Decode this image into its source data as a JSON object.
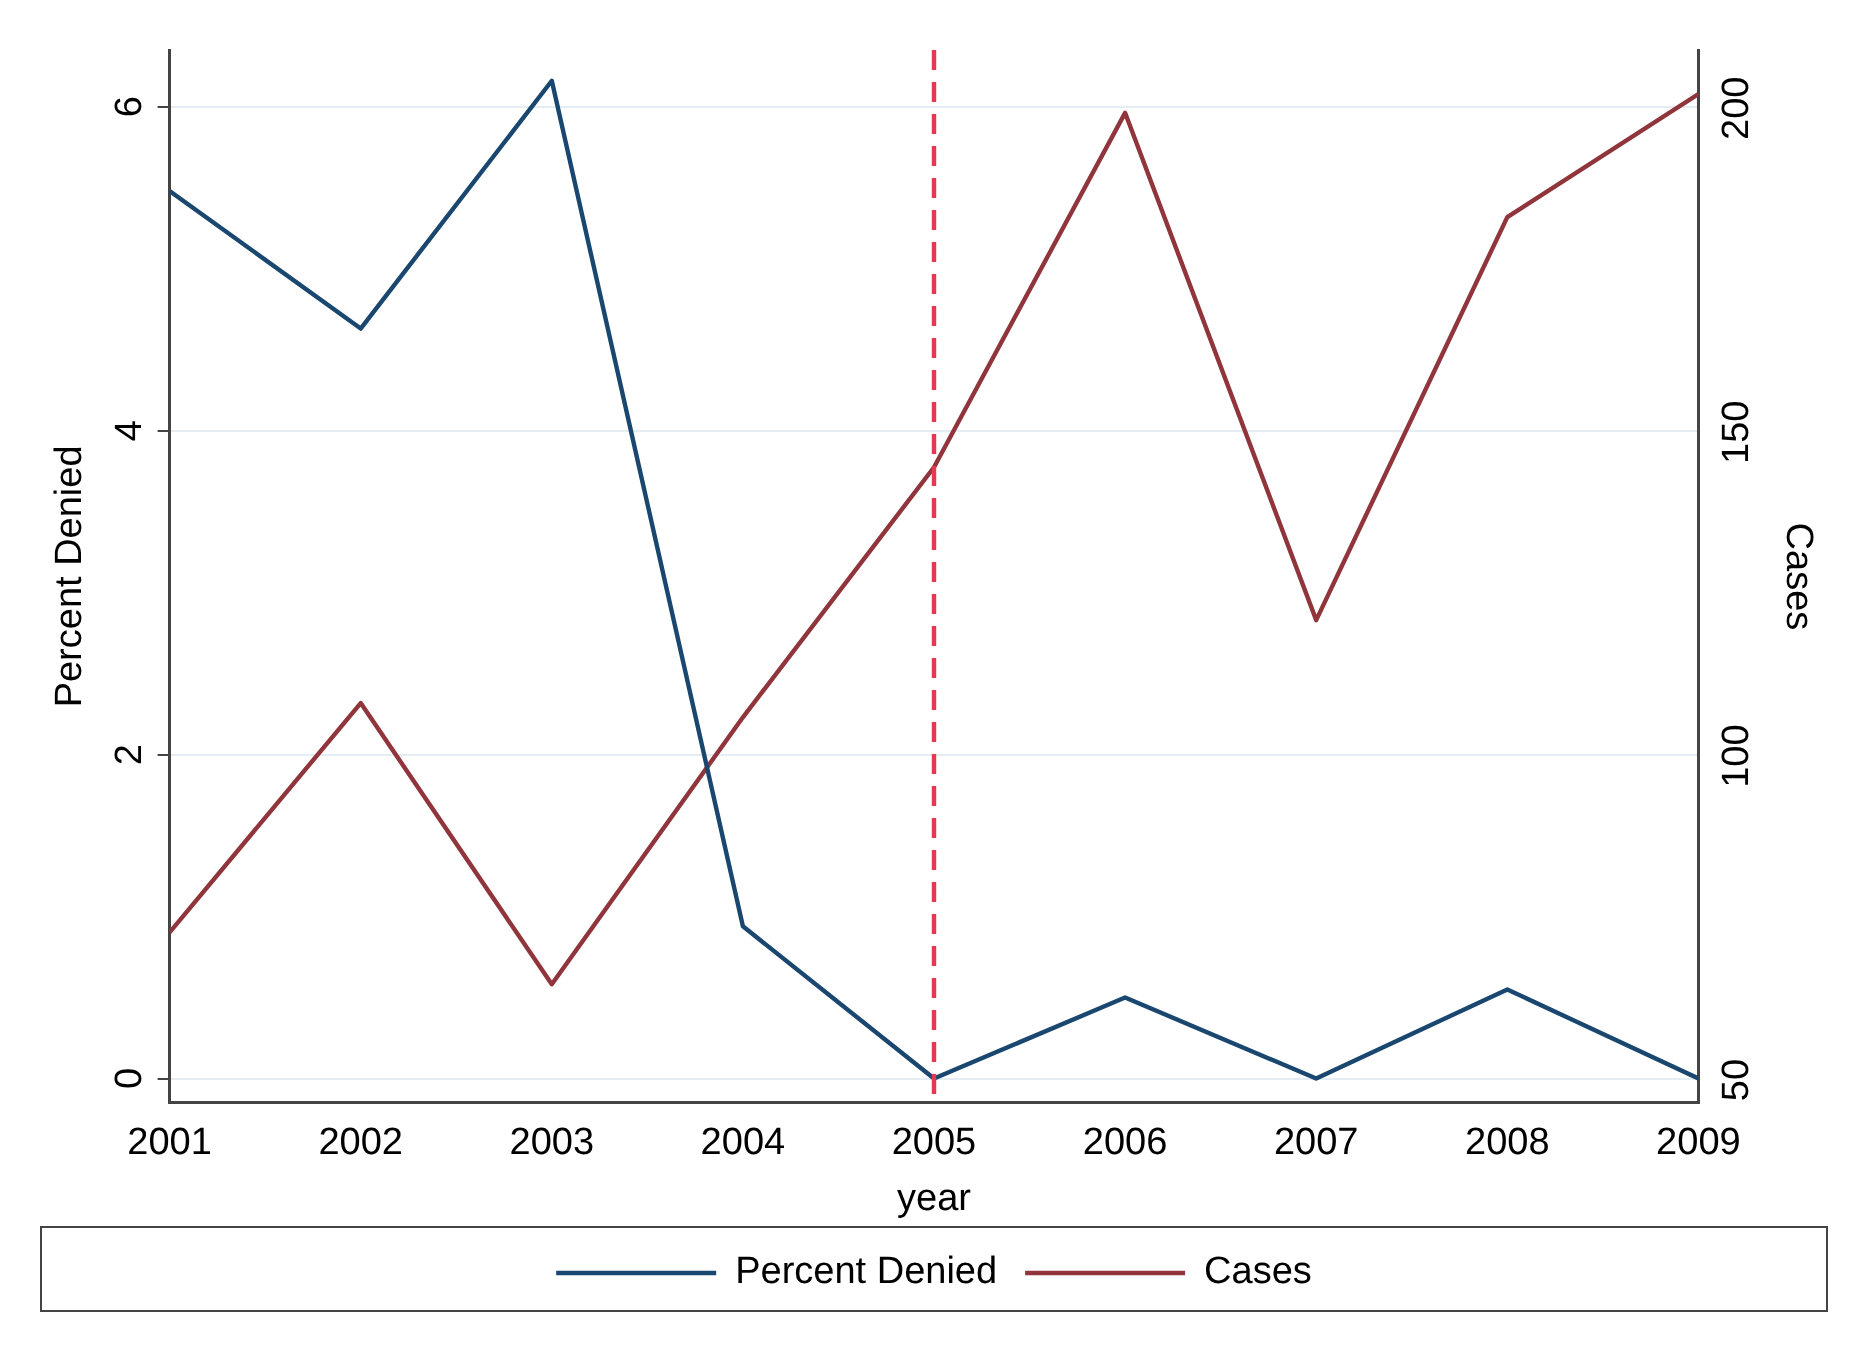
{
  "chart_data": {
    "type": "line",
    "xlabel": "year",
    "ylabel": "Percent Denied",
    "y2label": "Cases",
    "x": [
      2001,
      2002,
      2003,
      2004,
      2005,
      2006,
      2007,
      2008,
      2009
    ],
    "series": [
      {
        "name": "Percent Denied",
        "color": "#1a476f",
        "values": [
          5.48,
          4.63,
          6.16,
          0.94,
          0,
          0.5,
          0,
          0.55,
          0
        ]
      },
      {
        "name": "Cases",
        "color": "#90353b",
        "axis": "y2",
        "values": [
          72.8,
          108.2,
          64.8,
          106,
          144.6,
          199.3,
          121,
          183.2,
          202.2
        ]
      }
    ],
    "xlim": [
      2001,
      2009
    ],
    "xticks": [
      2001,
      2002,
      2003,
      2004,
      2005,
      2006,
      2007,
      2008,
      2009
    ],
    "ylim": [
      -0.15,
      6.35
    ],
    "yticks": [
      0,
      2,
      4,
      6
    ],
    "y2lim": [
      46.5,
      209
    ],
    "y2ticks": [
      50,
      100,
      150,
      200
    ],
    "ref_lines": [
      {
        "axis": "x",
        "value": 2005,
        "color": "#e8384f",
        "line_style": "dashed"
      }
    ],
    "grid": "y",
    "legend": "bottom",
    "marker": "none",
    "line_style": "solid"
  }
}
